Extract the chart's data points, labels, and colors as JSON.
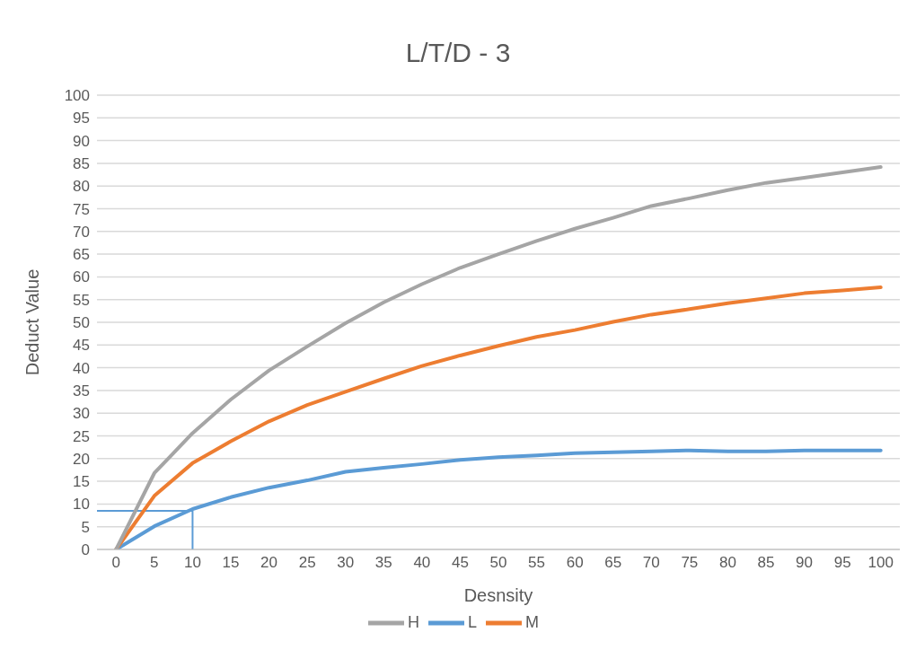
{
  "chart_data": {
    "type": "line",
    "title": "L/T/D - 3",
    "xlabel": "Desnsity",
    "ylabel": "Deduct Value",
    "categories": [
      "0",
      "5",
      "10",
      "15",
      "20",
      "25",
      "30",
      "35",
      "40",
      "45",
      "50",
      "55",
      "60",
      "65",
      "70",
      "75",
      "80",
      "85",
      "90",
      "95",
      "100"
    ],
    "series": [
      {
        "name": "L",
        "color": "#5b9bd5",
        "values": [
          0,
          5.1,
          8.9,
          11.5,
          13.6,
          15.2,
          17.1,
          18,
          18.8,
          19.7,
          20.3,
          20.7,
          21.2,
          21.4,
          21.6,
          21.8,
          21.6,
          21.6,
          21.8,
          21.8,
          21.8
        ]
      },
      {
        "name": "M",
        "color": "#ed7d31",
        "values": [
          0,
          11.8,
          19,
          23.8,
          28.2,
          31.8,
          34.7,
          37.6,
          40.4,
          42.7,
          44.8,
          46.8,
          48.3,
          50.1,
          51.7,
          52.9,
          54.2,
          55.3,
          56.4,
          57,
          57.7
        ]
      },
      {
        "name": "H",
        "color": "#a5a5a5",
        "values": [
          0,
          16.8,
          25.6,
          33,
          39.4,
          44.7,
          49.8,
          54.4,
          58.4,
          62,
          65,
          67.9,
          70.6,
          73,
          75.6,
          77.3,
          79.1,
          80.7,
          81.8,
          83,
          84.2
        ]
      }
    ],
    "ylim": [
      0,
      100
    ],
    "yticks": [
      0,
      5,
      10,
      15,
      20,
      25,
      30,
      35,
      40,
      45,
      50,
      55,
      60,
      65,
      70,
      75,
      80,
      85,
      90,
      95,
      100
    ],
    "ref_lines": [
      {
        "axis": "y",
        "value": 8.5,
        "color": "#5b9bd5"
      },
      {
        "axis": "x",
        "value": "10",
        "color": "#5b9bd5"
      }
    ],
    "grid": "y",
    "legend": "bottom",
    "marker": "none",
    "line_style": "solid"
  }
}
